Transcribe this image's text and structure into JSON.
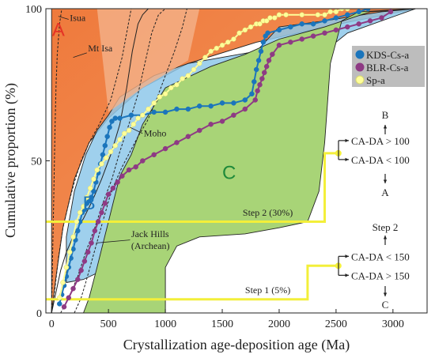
{
  "chart_data": {
    "type": "line",
    "xlabel": "Crystallization age-deposition age (Ma)",
    "ylabel": "Cumulative proportion (%)",
    "xlim": [
      -50,
      3300
    ],
    "ylim": [
      0,
      100
    ],
    "x_ticks": [
      0,
      500,
      1000,
      1500,
      2000,
      2500,
      3000
    ],
    "x_tick_labels": [
      "0",
      "500",
      "1000",
      "1500",
      "2000",
      "2500",
      "3000"
    ],
    "y_ticks": [
      0,
      50,
      100
    ],
    "y_tick_labels": [
      "0",
      "50",
      "100"
    ],
    "grid": false,
    "legend_position": "top-right",
    "colors": {
      "field_A": "#ef7a3c",
      "field_A_light": "#f4b18a",
      "field_B": "#8ec8ea",
      "field_C": "#a8d477",
      "kds": "#1b75bc",
      "blr": "#8e3a84",
      "sp": "#ffff99",
      "steps": "#f3ef3a",
      "reference": "#222222"
    },
    "field_labels": [
      {
        "text": "A",
        "color": "#e53425",
        "x": 60,
        "y": 91
      },
      {
        "text": "B",
        "color": "#1b75bc",
        "x": 330,
        "y": 34
      },
      {
        "text": "C",
        "color": "#1f8a3a",
        "x": 1560,
        "y": 44
      }
    ],
    "fields": [
      {
        "name": "A",
        "points": [
          [
            0,
            0
          ],
          [
            40,
            12
          ],
          [
            100,
            28
          ],
          [
            200,
            44
          ],
          [
            330,
            56
          ],
          [
            500,
            64
          ],
          [
            800,
            74
          ],
          [
            1200,
            82
          ],
          [
            1800,
            89
          ],
          [
            2400,
            94
          ],
          [
            3200,
            100
          ],
          [
            3200,
            100
          ],
          [
            90,
            100
          ],
          [
            0,
            100
          ]
        ]
      },
      {
        "name": "B",
        "points": [
          [
            130,
            10
          ],
          [
            280,
            11
          ],
          [
            450,
            14
          ],
          [
            700,
            20
          ],
          [
            1000,
            26
          ],
          [
            1300,
            35
          ],
          [
            1600,
            48
          ],
          [
            1800,
            56
          ],
          [
            2000,
            64
          ],
          [
            2200,
            75
          ],
          [
            2400,
            86
          ],
          [
            2600,
            92
          ],
          [
            3200,
            100
          ],
          [
            2900,
            99
          ],
          [
            2400,
            96
          ],
          [
            2000,
            94
          ],
          [
            1900,
            90
          ],
          [
            1800,
            86
          ],
          [
            1500,
            84
          ],
          [
            1200,
            82
          ],
          [
            900,
            78
          ],
          [
            600,
            71
          ],
          [
            500,
            65
          ],
          [
            400,
            60
          ],
          [
            300,
            52
          ],
          [
            200,
            40
          ],
          [
            130,
            25
          ]
        ]
      },
      {
        "name": "C",
        "points": [
          [
            280,
            0
          ],
          [
            1000,
            0
          ],
          [
            1000,
            15
          ],
          [
            1100,
            22
          ],
          [
            1300,
            25
          ],
          [
            1700,
            26
          ],
          [
            2000,
            28
          ],
          [
            2250,
            30
          ],
          [
            2350,
            40
          ],
          [
            2400,
            56
          ],
          [
            2450,
            82
          ],
          [
            2550,
            96
          ],
          [
            2700,
            99
          ],
          [
            3200,
            100
          ],
          [
            2800,
            99
          ],
          [
            2400,
            94
          ],
          [
            2000,
            90
          ],
          [
            1700,
            85
          ],
          [
            1400,
            81
          ],
          [
            1000,
            74
          ],
          [
            800,
            62
          ],
          [
            700,
            52
          ],
          [
            600,
            45
          ],
          [
            500,
            30
          ],
          [
            400,
            15
          ],
          [
            330,
            5
          ]
        ]
      }
    ],
    "series": [
      {
        "name": "KDS-Cs-a",
        "color": "#1b75bc",
        "x": [
          70,
          90,
          110,
          130,
          150,
          170,
          190,
          210,
          230,
          250,
          270,
          290,
          310,
          330,
          350,
          370,
          390,
          410,
          430,
          450,
          470,
          490,
          510,
          530,
          560,
          600,
          700,
          800,
          900,
          1000,
          1100,
          1200,
          1300,
          1400,
          1500,
          1600,
          1700,
          1760,
          1780,
          1800,
          1820,
          1840,
          1860,
          1880,
          1900,
          2000,
          2100,
          2200,
          2300,
          2400,
          2500,
          2600,
          2700,
          2780
        ],
        "y": [
          3,
          6,
          9,
          12,
          15,
          18,
          21,
          24,
          27,
          30,
          33,
          34,
          36,
          37,
          38,
          40,
          43,
          46,
          49,
          52,
          55,
          58,
          61,
          63,
          64,
          64,
          65,
          65,
          66,
          66,
          67,
          67,
          68,
          68,
          69,
          69,
          70,
          72,
          76,
          80,
          83,
          86,
          89,
          91,
          92,
          93,
          94,
          95,
          95,
          96,
          97,
          98,
          99,
          100
        ]
      },
      {
        "name": "BLR-Cs-a",
        "color": "#8e3a84",
        "x": [
          110,
          150,
          190,
          230,
          260,
          290,
          320,
          350,
          380,
          410,
          440,
          470,
          500,
          540,
          580,
          620,
          680,
          740,
          800,
          900,
          1000,
          1100,
          1200,
          1300,
          1400,
          1500,
          1600,
          1700,
          1790,
          1810,
          1830,
          1850,
          1870,
          1890,
          1910,
          1940,
          2000,
          2100,
          2200,
          2300,
          2400,
          2500,
          2600,
          2700,
          2800,
          2900,
          2980
        ],
        "y": [
          2,
          5,
          8,
          11,
          14,
          17,
          20,
          23,
          27,
          30,
          33,
          36,
          39,
          41,
          43,
          45,
          47,
          48,
          50,
          52,
          54,
          56,
          58,
          60,
          62,
          63,
          65,
          67,
          70,
          73,
          75,
          77,
          79,
          81,
          83,
          85,
          88,
          89,
          90,
          91,
          92,
          93,
          94,
          95,
          96,
          97,
          99
        ]
      },
      {
        "name": "Sp-a",
        "color": "#ffff99",
        "x": [
          70,
          100,
          130,
          160,
          190,
          220,
          250,
          280,
          310,
          340,
          370,
          400,
          440,
          480,
          520,
          560,
          600,
          640,
          680,
          720,
          760,
          800,
          850,
          900,
          950,
          1000,
          1050,
          1100,
          1150,
          1200,
          1250,
          1300,
          1350,
          1400,
          1450,
          1500,
          1550,
          1600,
          1650,
          1700,
          1750,
          1800,
          1830,
          1860,
          1890,
          1920,
          1960,
          2000,
          2060,
          2200,
          2340,
          2400,
          2450,
          2500,
          2550,
          2600
        ],
        "y": [
          5,
          10,
          15,
          20,
          25,
          30,
          33,
          35,
          38,
          41,
          44,
          47,
          49,
          51,
          53,
          55,
          57,
          59,
          60,
          62,
          64,
          65,
          67,
          69,
          71,
          72,
          74,
          75,
          77,
          78,
          80,
          82,
          84,
          86,
          87,
          88,
          89,
          90,
          92,
          93,
          94,
          95,
          95,
          96,
          96,
          97,
          97,
          98,
          98,
          98,
          98,
          98,
          99,
          99,
          100,
          100
        ]
      }
    ],
    "reference_curves": [
      {
        "name": "Isua",
        "label": "Isua",
        "dash": "3,2",
        "x": [
          0,
          5,
          10,
          15,
          20,
          25,
          30,
          40,
          50,
          70,
          90
        ],
        "y": [
          0,
          10,
          20,
          30,
          40,
          50,
          60,
          75,
          85,
          95,
          100
        ]
      },
      {
        "name": "Mt Isa",
        "label": "Mt Isa",
        "dash": "3,2",
        "x": [
          0,
          30,
          60,
          100,
          150,
          200,
          260,
          330,
          420,
          520,
          620,
          700
        ],
        "y": [
          0,
          8,
          18,
          28,
          36,
          43,
          50,
          56,
          62,
          70,
          84,
          100
        ]
      },
      {
        "name": "Mt Isa solid",
        "label": "",
        "dash": "",
        "x": [
          0,
          40,
          80,
          130,
          200,
          280,
          360,
          440,
          520,
          600,
          660,
          710,
          760,
          800,
          850
        ],
        "y": [
          0,
          7,
          14,
          20,
          26,
          31,
          37,
          44,
          52,
          62,
          74,
          86,
          95,
          98,
          100
        ]
      },
      {
        "name": "Moho",
        "label": "Moho",
        "dash": "3,2",
        "x": [
          80,
          150,
          230,
          300,
          380,
          450,
          530,
          600,
          680,
          760,
          820,
          880,
          940,
          1000
        ],
        "y": [
          0,
          5,
          12,
          20,
          28,
          36,
          44,
          53,
          62,
          72,
          82,
          92,
          98,
          100
        ]
      },
      {
        "name": "Jack Hills (Archean)",
        "label": "Jack Hills (Archean)",
        "dash": "3,2",
        "x": [
          200,
          260,
          300,
          330,
          360,
          390,
          420,
          450,
          480,
          510,
          560,
          620,
          690,
          760,
          840,
          920,
          1000,
          1080,
          1150,
          1190
        ],
        "y": [
          0,
          5,
          10,
          14,
          18,
          22,
          26,
          30,
          34,
          38,
          43,
          48,
          53,
          58,
          63,
          70,
          78,
          86,
          94,
          100
        ]
      }
    ],
    "annotations": [
      {
        "text": "Isua",
        "x": 160,
        "y": 96
      },
      {
        "text": "Mt Isa",
        "x": 320,
        "y": 86
      },
      {
        "text": "Moho",
        "x": 810,
        "y": 58
      },
      {
        "text": "Jack Hills",
        "x": 700,
        "y": 25
      },
      {
        "text": "(Archean)",
        "x": 700,
        "y": 21
      },
      {
        "text": "Step 2 (30%)",
        "x": 1900,
        "y": 32
      },
      {
        "text": "Step 1 (5%)",
        "x": 1900,
        "y": 6.5
      }
    ],
    "step_lines": [
      {
        "name": "Step 2",
        "x": [
          -50,
          2400,
          2400,
          2520
        ],
        "y": [
          30,
          30,
          52.5,
          52.5
        ]
      },
      {
        "name": "Step 1",
        "x": [
          -50,
          2250,
          2250,
          2520
        ],
        "y": [
          4.5,
          4.5,
          15.5,
          15.5
        ]
      }
    ],
    "decision_tree": {
      "upper": {
        "top": "B",
        "gt": "CA-DA > 100",
        "lt": "CA-DA < 100",
        "bottom": "A"
      },
      "lower": {
        "top": "Step 2",
        "lt": "CA-DA < 150",
        "gt": "CA-DA > 150",
        "bottom": "C"
      }
    },
    "legend": [
      {
        "label": "KDS-Cs-a",
        "color": "#1b75bc"
      },
      {
        "label": "BLR-Cs-a",
        "color": "#8e3a84"
      },
      {
        "label": "Sp-a",
        "color": "#ffff99"
      }
    ]
  }
}
